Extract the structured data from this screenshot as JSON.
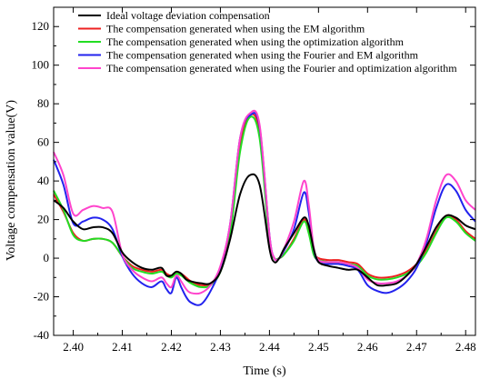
{
  "chart_data": {
    "type": "line",
    "title": "",
    "xlabel": "Time (s)",
    "ylabel": "Voltage compensation value(V)",
    "xlim": [
      2.396,
      2.482
    ],
    "ylim": [
      -40,
      130
    ],
    "xticks": [
      2.4,
      2.41,
      2.42,
      2.43,
      2.44,
      2.45,
      2.46,
      2.47,
      2.48
    ],
    "xtick_labels": [
      "2.40",
      "2.41",
      "2.42",
      "2.43",
      "2.44",
      "2.45",
      "2.46",
      "2.47",
      "2.48"
    ],
    "yticks": [
      -40,
      -20,
      0,
      20,
      40,
      60,
      80,
      100,
      120
    ],
    "ytick_labels": [
      "-40",
      "-20",
      "0",
      "20",
      "40",
      "60",
      "80",
      "100",
      "120"
    ],
    "grid": false,
    "legend_position": "top-left",
    "series": [
      {
        "name": "Ideal voltage deviation compensation",
        "color": "#000000",
        "x": [
          2.396,
          2.398,
          2.4,
          2.402,
          2.404,
          2.406,
          2.408,
          2.41,
          2.412,
          2.414,
          2.416,
          2.418,
          2.419,
          2.42,
          2.421,
          2.422,
          2.423,
          2.424,
          2.426,
          2.428,
          2.43,
          2.432,
          2.434,
          2.436,
          2.438,
          2.44,
          2.441,
          2.442,
          2.443,
          2.445,
          2.447,
          2.448,
          2.449,
          2.45,
          2.452,
          2.454,
          2.456,
          2.458,
          2.46,
          2.462,
          2.464,
          2.466,
          2.468,
          2.47,
          2.472,
          2.474,
          2.476,
          2.478,
          2.48,
          2.482
        ],
        "y": [
          30,
          26,
          19,
          15,
          16,
          16,
          13,
          3,
          -2,
          -5,
          -6,
          -5,
          -9,
          -9,
          -7,
          -8,
          -11,
          -12,
          -13,
          -13,
          -7,
          10,
          33,
          43,
          38,
          5,
          -2,
          0,
          5,
          13,
          21,
          17,
          5,
          -2,
          -4,
          -5,
          -6,
          -6,
          -10,
          -14,
          -14,
          -13,
          -9,
          -3,
          6,
          16,
          22,
          21,
          17,
          15
        ]
      },
      {
        "name": "The  compensation generated when using the EM algorithm",
        "color": "#ee2020",
        "x": [
          2.396,
          2.398,
          2.4,
          2.402,
          2.404,
          2.406,
          2.408,
          2.41,
          2.412,
          2.414,
          2.416,
          2.418,
          2.419,
          2.42,
          2.421,
          2.422,
          2.423,
          2.424,
          2.426,
          2.428,
          2.43,
          2.432,
          2.434,
          2.436,
          2.438,
          2.44,
          2.441,
          2.442,
          2.443,
          2.445,
          2.447,
          2.448,
          2.449,
          2.45,
          2.452,
          2.454,
          2.456,
          2.458,
          2.46,
          2.462,
          2.464,
          2.466,
          2.468,
          2.47,
          2.472,
          2.474,
          2.476,
          2.478,
          2.48,
          2.482
        ],
        "y": [
          33,
          24,
          13,
          9,
          10,
          10,
          8,
          1,
          -4,
          -6,
          -7,
          -6,
          -8,
          -9,
          -7,
          -8,
          -10,
          -12,
          -14,
          -13,
          -6,
          14,
          58,
          74,
          65,
          10,
          0,
          0,
          2,
          10,
          20,
          14,
          3,
          0,
          -1,
          -1,
          -2,
          -3,
          -8,
          -10,
          -10,
          -9,
          -7,
          -3,
          4,
          14,
          22,
          20,
          14,
          10
        ]
      },
      {
        "name": "The compensation generated when using the optimization algorithm",
        "color": "#22dd22",
        "x": [
          2.396,
          2.398,
          2.4,
          2.402,
          2.404,
          2.406,
          2.408,
          2.41,
          2.412,
          2.414,
          2.416,
          2.418,
          2.419,
          2.42,
          2.421,
          2.422,
          2.423,
          2.424,
          2.426,
          2.428,
          2.43,
          2.432,
          2.434,
          2.436,
          2.438,
          2.44,
          2.441,
          2.442,
          2.443,
          2.445,
          2.447,
          2.448,
          2.449,
          2.45,
          2.452,
          2.454,
          2.456,
          2.458,
          2.46,
          2.462,
          2.464,
          2.466,
          2.468,
          2.47,
          2.472,
          2.474,
          2.476,
          2.478,
          2.48,
          2.482
        ],
        "y": [
          35,
          25,
          12,
          9,
          10,
          10,
          8,
          1,
          -5,
          -7,
          -8,
          -7,
          -9,
          -10,
          -8,
          -9,
          -11,
          -13,
          -15,
          -14,
          -7,
          12,
          55,
          73,
          62,
          8,
          0,
          0,
          2,
          9,
          19,
          13,
          2,
          -1,
          -2,
          -2,
          -3,
          -4,
          -9,
          -11,
          -11,
          -10,
          -8,
          -4,
          3,
          13,
          21,
          19,
          13,
          9
        ]
      },
      {
        "name": "The compensation generated when using the Fourier and EM algorithm",
        "color": "#2222ee",
        "x": [
          2.396,
          2.398,
          2.4,
          2.402,
          2.404,
          2.406,
          2.408,
          2.41,
          2.412,
          2.414,
          2.416,
          2.418,
          2.419,
          2.42,
          2.421,
          2.422,
          2.423,
          2.424,
          2.426,
          2.428,
          2.43,
          2.432,
          2.434,
          2.436,
          2.438,
          2.44,
          2.441,
          2.442,
          2.443,
          2.445,
          2.447,
          2.448,
          2.449,
          2.45,
          2.452,
          2.454,
          2.456,
          2.458,
          2.46,
          2.462,
          2.464,
          2.466,
          2.468,
          2.47,
          2.472,
          2.474,
          2.476,
          2.478,
          2.48,
          2.482
        ],
        "y": [
          51,
          38,
          18,
          19,
          21,
          20,
          15,
          1,
          -8,
          -13,
          -15,
          -12,
          -16,
          -18,
          -10,
          -15,
          -20,
          -23,
          -24,
          -17,
          -5,
          18,
          62,
          74,
          68,
          12,
          0,
          0,
          4,
          15,
          34,
          24,
          5,
          -2,
          -3,
          -3,
          -4,
          -6,
          -14,
          -17,
          -18,
          -16,
          -12,
          -5,
          8,
          26,
          38,
          35,
          25,
          19
        ]
      },
      {
        "name": "The  compensation generated when using the Fourier and optimization algorithm",
        "color": "#ff44cc",
        "x": [
          2.396,
          2.398,
          2.4,
          2.402,
          2.404,
          2.406,
          2.408,
          2.41,
          2.412,
          2.414,
          2.416,
          2.418,
          2.419,
          2.42,
          2.421,
          2.422,
          2.423,
          2.424,
          2.426,
          2.428,
          2.43,
          2.432,
          2.434,
          2.436,
          2.438,
          2.44,
          2.441,
          2.442,
          2.443,
          2.445,
          2.447,
          2.448,
          2.449,
          2.45,
          2.452,
          2.454,
          2.456,
          2.458,
          2.46,
          2.462,
          2.464,
          2.466,
          2.468,
          2.47,
          2.472,
          2.474,
          2.476,
          2.478,
          2.48,
          2.482
        ],
        "y": [
          55,
          43,
          23,
          25,
          27,
          26,
          24,
          2,
          -6,
          -10,
          -12,
          -10,
          -13,
          -15,
          -9,
          -12,
          -16,
          -18,
          -18,
          -14,
          -4,
          18,
          62,
          75,
          69,
          12,
          0,
          0,
          5,
          19,
          40,
          28,
          6,
          -1,
          -2,
          -2,
          -3,
          -5,
          -11,
          -13,
          -13,
          -12,
          -9,
          -3,
          10,
          30,
          43,
          40,
          30,
          25
        ]
      }
    ]
  }
}
